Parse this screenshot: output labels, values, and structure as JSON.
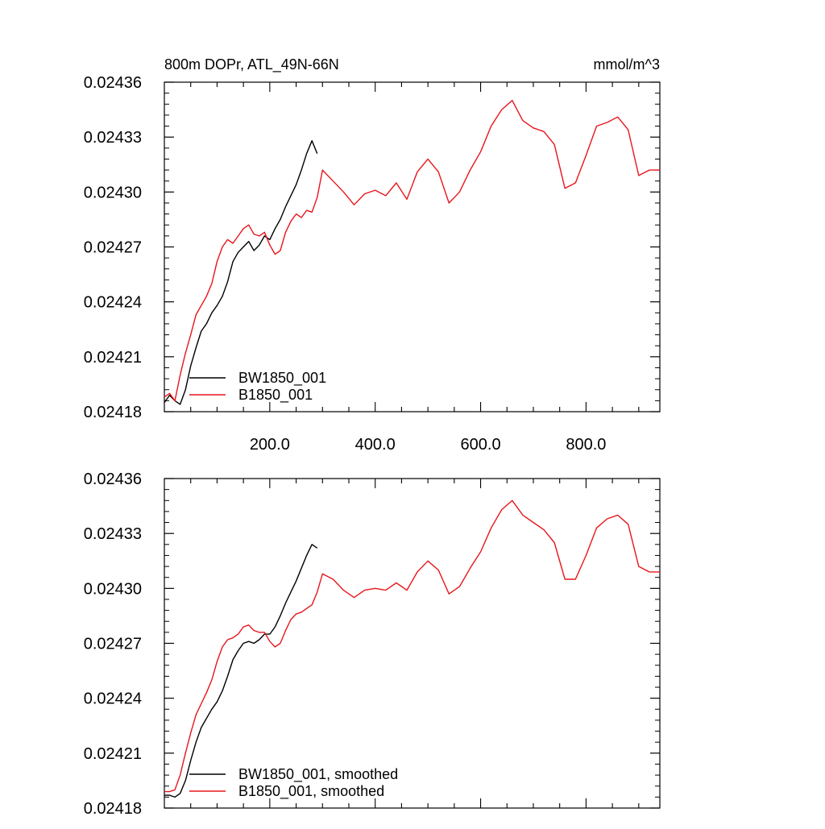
{
  "title": "800m DOPr, ATL_49N-66N",
  "units": "mmol/m^3",
  "colors": {
    "BW1850_001": "#000000",
    "B1850_001": "#e8151b",
    "axis": "#000000"
  },
  "chart_data": [
    {
      "type": "line",
      "xlim": [
        0,
        940
      ],
      "ylim": [
        0.02418,
        0.02436
      ],
      "yticks": [
        "0.02418",
        "0.02421",
        "0.02424",
        "0.02427",
        "0.02430",
        "0.02433",
        "0.02436"
      ],
      "xticks": [
        "200.0",
        "400.0",
        "600.0",
        "800.0"
      ],
      "grid": false,
      "legend_position": "bottom-left",
      "series": [
        {
          "name": "BW1850_001",
          "color": "#000000",
          "x": [
            0,
            10,
            20,
            30,
            40,
            50,
            60,
            70,
            80,
            90,
            100,
            110,
            120,
            130,
            140,
            150,
            160,
            170,
            180,
            190,
            200,
            210,
            220,
            230,
            240,
            250,
            260,
            270,
            280,
            290
          ],
          "y": [
            0.024185,
            0.024189,
            0.024186,
            0.024184,
            0.024192,
            0.024205,
            0.024215,
            0.024224,
            0.024228,
            0.024234,
            0.024238,
            0.024243,
            0.024251,
            0.024262,
            0.024267,
            0.02427,
            0.024273,
            0.024268,
            0.024271,
            0.024276,
            0.024274,
            0.02428,
            0.024285,
            0.024292,
            0.024298,
            0.024304,
            0.024312,
            0.024321,
            0.024328,
            0.024321
          ]
        },
        {
          "name": "B1850_001",
          "color": "#e8151b",
          "x": [
            0,
            10,
            20,
            30,
            40,
            50,
            60,
            70,
            80,
            90,
            100,
            110,
            120,
            130,
            140,
            150,
            160,
            170,
            180,
            190,
            200,
            210,
            220,
            230,
            240,
            250,
            260,
            270,
            280,
            290,
            300,
            320,
            340,
            360,
            380,
            400,
            420,
            440,
            460,
            480,
            500,
            520,
            540,
            560,
            580,
            600,
            620,
            640,
            660,
            680,
            700,
            720,
            740,
            760,
            780,
            800,
            820,
            840,
            860,
            880,
            900,
            920,
            940
          ],
          "y": [
            0.024188,
            0.02419,
            0.024186,
            0.0242,
            0.024212,
            0.024222,
            0.024233,
            0.024238,
            0.024243,
            0.02425,
            0.024262,
            0.02427,
            0.024274,
            0.024272,
            0.024276,
            0.02428,
            0.024282,
            0.024277,
            0.024276,
            0.024278,
            0.024271,
            0.024266,
            0.024268,
            0.024278,
            0.024284,
            0.024288,
            0.024286,
            0.02429,
            0.024289,
            0.024297,
            0.024312,
            0.024306,
            0.0243,
            0.024293,
            0.024299,
            0.024301,
            0.024298,
            0.024305,
            0.024296,
            0.024311,
            0.024318,
            0.024311,
            0.024294,
            0.0243,
            0.024312,
            0.024322,
            0.024336,
            0.024345,
            0.02435,
            0.024339,
            0.024335,
            0.024333,
            0.024326,
            0.024302,
            0.024305,
            0.02432,
            0.024336,
            0.024338,
            0.024341,
            0.024334,
            0.024309,
            0.024312,
            0.024312
          ]
        }
      ]
    },
    {
      "type": "line",
      "xlim": [
        0,
        940
      ],
      "ylim": [
        0.02418,
        0.02436
      ],
      "yticks": [
        "0.02418",
        "0.02421",
        "0.02424",
        "0.02427",
        "0.02430",
        "0.02433",
        "0.02436"
      ],
      "grid": false,
      "legend_position": "bottom-left",
      "series": [
        {
          "name": "BW1850_001, smoothed",
          "color": "#000000",
          "x": [
            0,
            10,
            20,
            30,
            40,
            50,
            60,
            70,
            80,
            90,
            100,
            110,
            120,
            130,
            140,
            150,
            160,
            170,
            180,
            190,
            200,
            210,
            220,
            230,
            240,
            250,
            260,
            270,
            280,
            290
          ],
          "y": [
            0.024187,
            0.024187,
            0.024186,
            0.024188,
            0.024195,
            0.024206,
            0.024216,
            0.024224,
            0.024229,
            0.024234,
            0.024238,
            0.024244,
            0.024252,
            0.024261,
            0.024266,
            0.02427,
            0.024271,
            0.02427,
            0.024272,
            0.024275,
            0.024275,
            0.024279,
            0.024285,
            0.024292,
            0.024298,
            0.024304,
            0.024311,
            0.024318,
            0.024324,
            0.024322
          ]
        },
        {
          "name": "B1850_001, smoothed",
          "color": "#e8151b",
          "x": [
            0,
            10,
            20,
            30,
            40,
            50,
            60,
            70,
            80,
            90,
            100,
            110,
            120,
            130,
            140,
            150,
            160,
            170,
            180,
            190,
            200,
            210,
            220,
            230,
            240,
            250,
            260,
            270,
            280,
            290,
            300,
            320,
            340,
            360,
            380,
            400,
            420,
            440,
            460,
            480,
            500,
            520,
            540,
            560,
            580,
            600,
            620,
            640,
            660,
            680,
            700,
            720,
            740,
            760,
            780,
            800,
            820,
            840,
            860,
            880,
            900,
            920,
            940
          ],
          "y": [
            0.024189,
            0.024189,
            0.02419,
            0.024198,
            0.02421,
            0.024221,
            0.024231,
            0.024237,
            0.024243,
            0.02425,
            0.02426,
            0.024268,
            0.024272,
            0.024273,
            0.024275,
            0.024279,
            0.02428,
            0.024277,
            0.024276,
            0.024276,
            0.024271,
            0.024268,
            0.02427,
            0.024277,
            0.024283,
            0.024286,
            0.024287,
            0.024289,
            0.024291,
            0.024298,
            0.024308,
            0.024305,
            0.024299,
            0.024295,
            0.024299,
            0.0243,
            0.024299,
            0.024303,
            0.024299,
            0.024309,
            0.024315,
            0.02431,
            0.024297,
            0.024301,
            0.024311,
            0.02432,
            0.024333,
            0.024343,
            0.024348,
            0.02434,
            0.024336,
            0.024332,
            0.024325,
            0.024305,
            0.024305,
            0.024318,
            0.024333,
            0.024338,
            0.02434,
            0.024335,
            0.024312,
            0.024309,
            0.024309
          ]
        }
      ]
    }
  ]
}
